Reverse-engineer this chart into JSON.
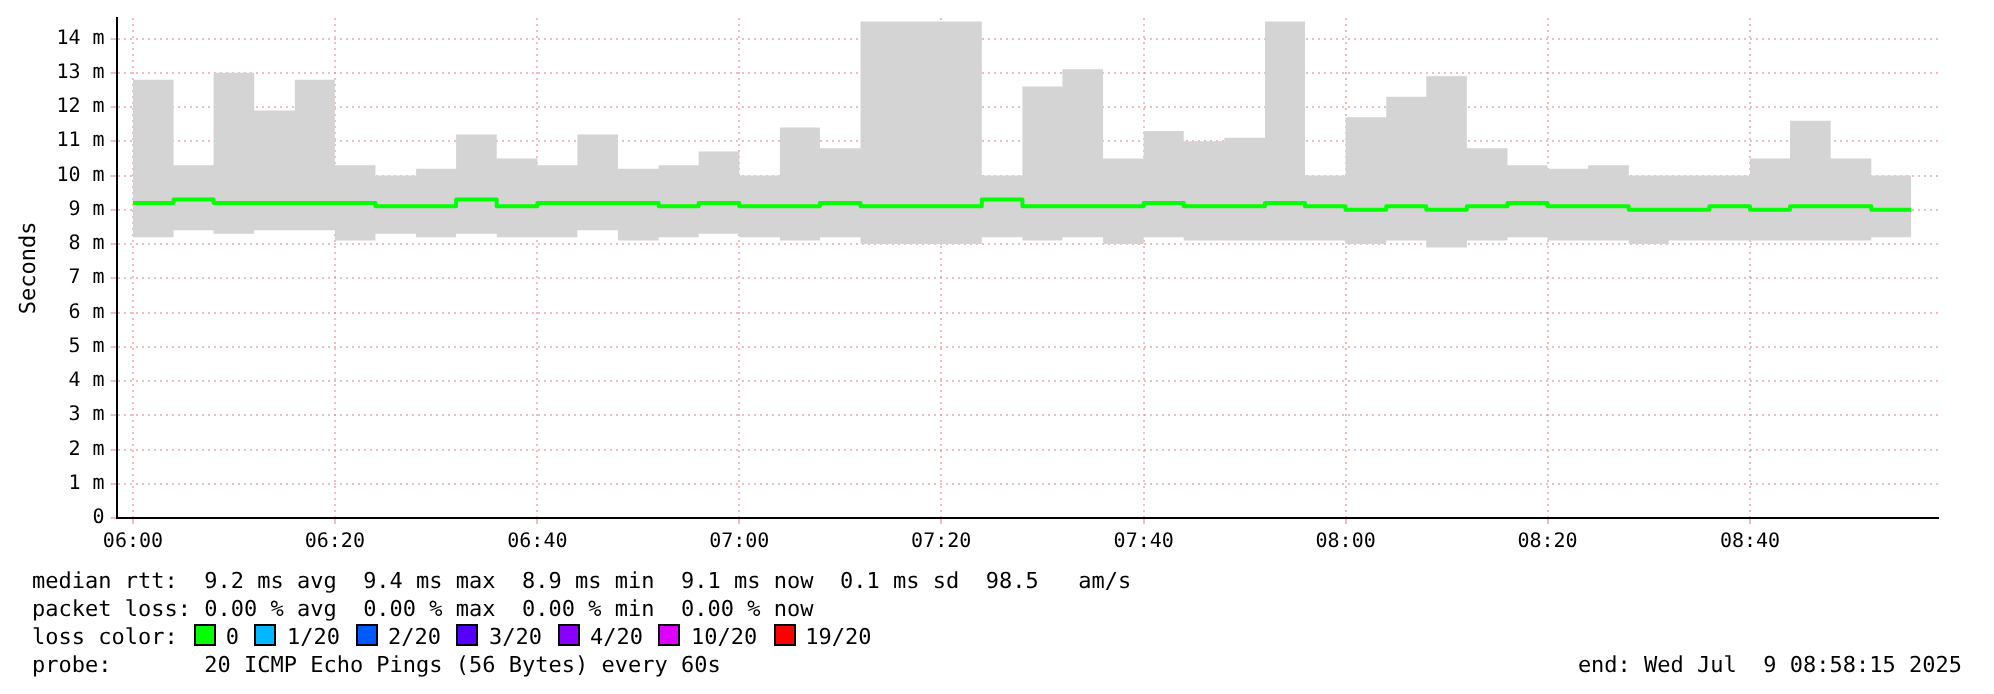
{
  "chart_data": {
    "type": "step",
    "ylabel": "Seconds",
    "x": [
      6.0,
      6.067,
      6.133,
      6.2,
      6.267,
      6.333,
      6.4,
      6.467,
      6.533,
      6.6,
      6.667,
      6.733,
      6.8,
      6.867,
      6.933,
      7.0,
      7.067,
      7.133,
      7.2,
      7.267,
      7.333,
      7.4,
      7.467,
      7.533,
      7.6,
      7.667,
      7.733,
      7.8,
      7.867,
      7.933,
      8.0,
      8.067,
      8.133,
      8.2,
      8.267,
      8.333,
      8.4,
      8.467,
      8.533,
      8.6,
      8.667,
      8.733,
      8.8,
      8.867,
      8.933
    ],
    "series": [
      {
        "color": "#00ff00",
        "values": [
          9.2,
          9.2,
          9.3,
          9.2,
          9.2,
          9.2,
          9.2,
          9.1,
          9.1,
          9.3,
          9.1,
          9.2,
          9.2,
          9.2,
          9.1,
          9.2,
          9.1,
          9.1,
          9.2,
          9.1,
          9.1,
          9.1,
          9.3,
          9.1,
          9.1,
          9.1,
          9.2,
          9.1,
          9.1,
          9.2,
          9.1,
          9.0,
          9.1,
          9.0,
          9.1,
          9.2,
          9.1,
          9.1,
          9.0,
          9.0,
          9.1,
          9.0,
          9.1,
          9.1,
          9.0
        ],
        "lower": [
          8.4,
          8.2,
          8.4,
          8.3,
          8.4,
          8.4,
          8.1,
          8.3,
          8.2,
          8.3,
          8.2,
          8.2,
          8.4,
          8.1,
          8.2,
          8.3,
          8.2,
          8.1,
          8.2,
          8.0,
          8.0,
          8.0,
          8.2,
          8.1,
          8.2,
          8.0,
          8.2,
          8.1,
          8.1,
          8.1,
          8.1,
          8.0,
          8.1,
          7.9,
          8.1,
          8.2,
          8.1,
          8.1,
          8.0,
          8.1,
          8.1,
          8.1,
          8.1,
          8.1,
          8.2
        ],
        "upper": [
          9.8,
          12.8,
          10.3,
          13.0,
          11.9,
          12.8,
          10.3,
          10.0,
          10.2,
          11.2,
          10.5,
          10.3,
          11.2,
          10.2,
          10.3,
          10.7,
          10.0,
          11.4,
          10.8,
          14.5,
          14.5,
          14.5,
          10.0,
          12.6,
          13.1,
          10.5,
          11.3,
          11.0,
          11.1,
          14.5,
          10.0,
          11.7,
          12.3,
          12.9,
          10.8,
          10.3,
          10.2,
          10.3,
          10.0,
          10.0,
          10.0,
          10.5,
          11.6,
          10.5,
          10.0
        ]
      }
    ],
    "xlim": [
      5.973,
      8.977
    ],
    "xticks": [
      {
        "value": 6,
        "label": "06:00"
      },
      {
        "value": 6.333,
        "label": "06:20"
      },
      {
        "value": 6.667,
        "label": "06:40"
      },
      {
        "value": 7,
        "label": "07:00"
      },
      {
        "value": 7.333,
        "label": "07:20"
      },
      {
        "value": 7.667,
        "label": "07:40"
      },
      {
        "value": 8,
        "label": "08:00"
      },
      {
        "value": 8.333,
        "label": "08:20"
      },
      {
        "value": 8.667,
        "label": "08:40"
      }
    ],
    "ylim": [
      0,
      14.6
    ],
    "yticks": [
      0,
      {
        "value": 1,
        "label": "1 m"
      },
      {
        "value": 2,
        "label": "2 m"
      },
      {
        "value": 3,
        "label": "3 m"
      },
      {
        "value": 4,
        "label": "4 m"
      },
      {
        "value": 5,
        "label": "5 m"
      },
      {
        "value": 6,
        "label": "6 m"
      },
      {
        "value": 7,
        "label": "7 m"
      },
      {
        "value": 8,
        "label": "8 m"
      },
      {
        "value": 9,
        "label": "9 m"
      },
      {
        "value": 10,
        "label": "10 m"
      },
      {
        "value": 11,
        "label": "11 m"
      },
      {
        "value": 12,
        "label": "12 m"
      },
      {
        "value": 13,
        "label": "13 m"
      },
      {
        "value": 14,
        "label": "14 m"
      }
    ],
    "grid": true,
    "legend": false,
    "marker": "none",
    "line_style": "solid",
    "annotations": [
      "median rtt:  9.2 ms avg  9.4 ms max  8.9 ms min  9.1 ms now  0.1 ms sd  98.5   am/s",
      "packet loss: 0.00 % avg  0.00 % max  0.00 % min  0.00 % now",
      "loss color:",
      "0",
      "1/20",
      "2/20",
      "3/20",
      "4/20",
      "10/20",
      "19/20",
      "probe:       20 ICMP Echo Pings (56 Bytes) every 60s",
      "end: Wed Jul  9 08:58:15 2025"
    ]
  }
}
